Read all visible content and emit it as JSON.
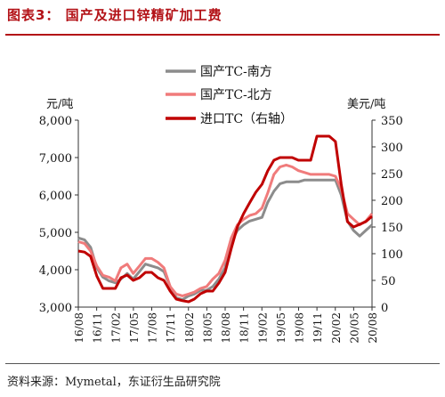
{
  "header": {
    "title": "图表3：  国产及进口锌精矿加工费"
  },
  "footer": {
    "source": "资料来源：Mymetal，东证衍生品研究院"
  },
  "chart_data": {
    "type": "line",
    "title": "",
    "left_axis": {
      "unit_label": "元/吨",
      "ylim": [
        3000,
        8000
      ],
      "ticks": [
        "3,000",
        "4,000",
        "5,000",
        "6,000",
        "7,000",
        "8,000"
      ]
    },
    "right_axis": {
      "unit_label": "美元/吨",
      "ylim": [
        0,
        350
      ],
      "ticks": [
        "0",
        "50",
        "100",
        "150",
        "200",
        "250",
        "300",
        "350"
      ]
    },
    "x_tick_labels": [
      "16/08",
      "16/11",
      "17/02",
      "17/05",
      "17/08",
      "17/11",
      "18/02",
      "18/05",
      "18/08",
      "18/11",
      "19/02",
      "19/05",
      "19/08",
      "19/11",
      "20/02",
      "20/05",
      "20/08"
    ],
    "x_range": [
      "2016-08",
      "2020-08"
    ],
    "grid": false,
    "legend_placement": "top-center",
    "series": [
      {
        "name": "国产TC-南方",
        "axis": "left",
        "color": "#8c8c8c",
        "points": [
          [
            "2016-08-01",
            4850
          ],
          [
            "2016-09-01",
            4800
          ],
          [
            "2016-10-01",
            4600
          ],
          [
            "2016-11-01",
            4050
          ],
          [
            "2016-12-01",
            3800
          ],
          [
            "2017-01-01",
            3700
          ],
          [
            "2017-02-01",
            3650
          ],
          [
            "2017-03-01",
            3750
          ],
          [
            "2017-04-01",
            3900
          ],
          [
            "2017-05-01",
            3750
          ],
          [
            "2017-06-01",
            3950
          ],
          [
            "2017-07-01",
            4150
          ],
          [
            "2017-08-01",
            4100
          ],
          [
            "2017-09-01",
            4050
          ],
          [
            "2017-10-01",
            3950
          ],
          [
            "2017-11-01",
            3550
          ],
          [
            "2017-12-01",
            3250
          ],
          [
            "2018-01-01",
            3200
          ],
          [
            "2018-02-01",
            3300
          ],
          [
            "2018-03-01",
            3350
          ],
          [
            "2018-04-01",
            3450
          ],
          [
            "2018-05-01",
            3450
          ],
          [
            "2018-06-01",
            3550
          ],
          [
            "2018-07-01",
            3750
          ],
          [
            "2018-08-01",
            4050
          ],
          [
            "2018-09-01",
            4750
          ],
          [
            "2018-10-01",
            5050
          ],
          [
            "2018-11-01",
            5200
          ],
          [
            "2018-12-01",
            5300
          ],
          [
            "2019-01-01",
            5350
          ],
          [
            "2019-02-01",
            5400
          ],
          [
            "2019-03-01",
            5800
          ],
          [
            "2019-04-01",
            6100
          ],
          [
            "2019-05-01",
            6300
          ],
          [
            "2019-06-01",
            6350
          ],
          [
            "2019-07-01",
            6350
          ],
          [
            "2019-08-01",
            6350
          ],
          [
            "2019-09-01",
            6400
          ],
          [
            "2019-10-01",
            6400
          ],
          [
            "2019-11-01",
            6400
          ],
          [
            "2019-12-01",
            6400
          ],
          [
            "2020-01-01",
            6400
          ],
          [
            "2020-02-01",
            6400
          ],
          [
            "2020-03-01",
            6000
          ],
          [
            "2020-04-01",
            5300
          ],
          [
            "2020-05-01",
            5050
          ],
          [
            "2020-06-01",
            4900
          ],
          [
            "2020-07-01",
            5050
          ],
          [
            "2020-08-01",
            5200
          ]
        ]
      },
      {
        "name": "国产TC-北方",
        "axis": "left",
        "color": "#f07b7b",
        "points": [
          [
            "2016-08-01",
            4750
          ],
          [
            "2016-09-01",
            4700
          ],
          [
            "2016-10-01",
            4500
          ],
          [
            "2016-11-01",
            4100
          ],
          [
            "2016-12-01",
            3850
          ],
          [
            "2017-01-01",
            3800
          ],
          [
            "2017-02-01",
            3700
          ],
          [
            "2017-03-01",
            4050
          ],
          [
            "2017-04-01",
            4150
          ],
          [
            "2017-05-01",
            3900
          ],
          [
            "2017-06-01",
            4100
          ],
          [
            "2017-07-01",
            4300
          ],
          [
            "2017-08-01",
            4300
          ],
          [
            "2017-09-01",
            4200
          ],
          [
            "2017-10-01",
            4050
          ],
          [
            "2017-11-01",
            3550
          ],
          [
            "2017-12-01",
            3350
          ],
          [
            "2018-01-01",
            3300
          ],
          [
            "2018-02-01",
            3350
          ],
          [
            "2018-03-01",
            3400
          ],
          [
            "2018-04-01",
            3500
          ],
          [
            "2018-05-01",
            3550
          ],
          [
            "2018-06-01",
            3750
          ],
          [
            "2018-07-01",
            3900
          ],
          [
            "2018-08-01",
            4250
          ],
          [
            "2018-09-01",
            4850
          ],
          [
            "2018-10-01",
            5200
          ],
          [
            "2018-11-01",
            5350
          ],
          [
            "2018-12-01",
            5450
          ],
          [
            "2019-01-01",
            5500
          ],
          [
            "2019-02-01",
            5650
          ],
          [
            "2019-03-01",
            6050
          ],
          [
            "2019-04-01",
            6550
          ],
          [
            "2019-05-01",
            6750
          ],
          [
            "2019-06-01",
            6800
          ],
          [
            "2019-07-01",
            6750
          ],
          [
            "2019-08-01",
            6650
          ],
          [
            "2019-09-01",
            6600
          ],
          [
            "2019-10-01",
            6550
          ],
          [
            "2019-11-01",
            6550
          ],
          [
            "2019-12-01",
            6550
          ],
          [
            "2020-01-01",
            6550
          ],
          [
            "2020-02-01",
            6500
          ],
          [
            "2020-03-01",
            6150
          ],
          [
            "2020-04-01",
            5500
          ],
          [
            "2020-05-01",
            5350
          ],
          [
            "2020-06-01",
            5200
          ],
          [
            "2020-07-01",
            5300
          ],
          [
            "2020-08-01",
            5500
          ]
        ]
      },
      {
        "name": "进口TC（右轴）",
        "axis": "right",
        "color": "#c00000",
        "points": [
          [
            "2016-08-01",
            105
          ],
          [
            "2016-09-01",
            103
          ],
          [
            "2016-10-01",
            95
          ],
          [
            "2016-11-01",
            58
          ],
          [
            "2016-12-01",
            35
          ],
          [
            "2017-01-01",
            35
          ],
          [
            "2017-02-01",
            35
          ],
          [
            "2017-03-01",
            55
          ],
          [
            "2017-04-01",
            60
          ],
          [
            "2017-05-01",
            50
          ],
          [
            "2017-06-01",
            55
          ],
          [
            "2017-07-01",
            65
          ],
          [
            "2017-08-01",
            65
          ],
          [
            "2017-09-01",
            55
          ],
          [
            "2017-10-01",
            50
          ],
          [
            "2017-11-01",
            30
          ],
          [
            "2017-12-01",
            15
          ],
          [
            "2018-01-01",
            12
          ],
          [
            "2018-02-01",
            10
          ],
          [
            "2018-03-01",
            15
          ],
          [
            "2018-04-01",
            25
          ],
          [
            "2018-05-01",
            30
          ],
          [
            "2018-06-01",
            30
          ],
          [
            "2018-07-01",
            45
          ],
          [
            "2018-08-01",
            65
          ],
          [
            "2018-09-01",
            110
          ],
          [
            "2018-10-01",
            150
          ],
          [
            "2018-11-01",
            175
          ],
          [
            "2018-12-01",
            195
          ],
          [
            "2019-01-01",
            215
          ],
          [
            "2019-02-01",
            230
          ],
          [
            "2019-03-01",
            255
          ],
          [
            "2019-04-01",
            275
          ],
          [
            "2019-05-01",
            280
          ],
          [
            "2019-06-01",
            280
          ],
          [
            "2019-07-01",
            280
          ],
          [
            "2019-08-01",
            275
          ],
          [
            "2019-09-01",
            275
          ],
          [
            "2019-10-01",
            275
          ],
          [
            "2019-11-01",
            320
          ],
          [
            "2019-12-01",
            320
          ],
          [
            "2020-01-01",
            320
          ],
          [
            "2020-02-01",
            310
          ],
          [
            "2020-03-01",
            230
          ],
          [
            "2020-04-01",
            160
          ],
          [
            "2020-05-01",
            150
          ],
          [
            "2020-06-01",
            155
          ],
          [
            "2020-07-01",
            160
          ],
          [
            "2020-08-01",
            170
          ]
        ]
      }
    ]
  }
}
